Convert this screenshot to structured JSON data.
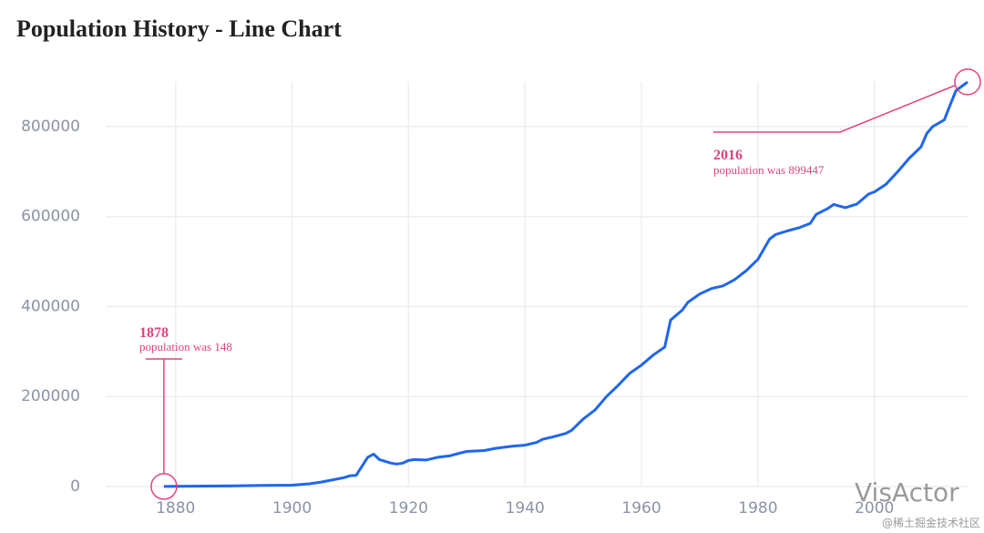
{
  "chart_data": {
    "type": "line",
    "title": "Population History - Line Chart",
    "x": [
      1878,
      1880,
      1890,
      1895,
      1900,
      1903,
      1905,
      1907,
      1909,
      1910,
      1911,
      1913,
      1914,
      1915,
      1917,
      1918,
      1919,
      1920,
      1921,
      1923,
      1925,
      1927,
      1929,
      1930,
      1933,
      1935,
      1938,
      1940,
      1942,
      1943,
      1945,
      1947,
      1948,
      1950,
      1952,
      1954,
      1956,
      1958,
      1960,
      1962,
      1964,
      1965,
      1967,
      1968,
      1970,
      1972,
      1974,
      1976,
      1977,
      1978,
      1980,
      1982,
      1983,
      1985,
      1987,
      1989,
      1990,
      1992,
      1993,
      1995,
      1997,
      1999,
      2000,
      2002,
      2004,
      2006,
      2008,
      2009,
      2010,
      2012,
      2013,
      2014,
      2016
    ],
    "values": [
      148,
      500,
      1500,
      2500,
      3000,
      6000,
      10000,
      15000,
      20000,
      24000,
      25000,
      65000,
      72000,
      60000,
      52000,
      50000,
      52000,
      58000,
      60000,
      59000,
      65000,
      68000,
      75000,
      78000,
      80000,
      85000,
      90000,
      92000,
      98000,
      105000,
      111000,
      118000,
      125000,
      150000,
      170000,
      200000,
      225000,
      252000,
      270000,
      292000,
      310000,
      370000,
      392000,
      410000,
      428000,
      440000,
      446000,
      460000,
      470000,
      480000,
      505000,
      550000,
      560000,
      568000,
      575000,
      585000,
      605000,
      618000,
      627000,
      620000,
      628000,
      650000,
      655000,
      672000,
      700000,
      730000,
      755000,
      785000,
      800000,
      815000,
      848000,
      880000,
      899447
    ],
    "color": "#1f66ee",
    "xlim": [
      1868,
      2016
    ],
    "xticks": [
      1880,
      1900,
      1920,
      1940,
      1960,
      1980,
      2000
    ],
    "ylim": [
      0,
      900000
    ],
    "yticks": [
      0,
      200000,
      400000,
      600000,
      800000
    ],
    "grid": true,
    "annotations": [
      {
        "x": 1878,
        "y": 148,
        "title": "1878",
        "text": "population was 148",
        "color": "#e0427e"
      },
      {
        "x": 2016,
        "y": 899447,
        "title": "2016",
        "text": "population was 899447",
        "color": "#e0427e"
      }
    ],
    "watermark": "VisActor",
    "source": "@稀土掘金技术社区"
  }
}
